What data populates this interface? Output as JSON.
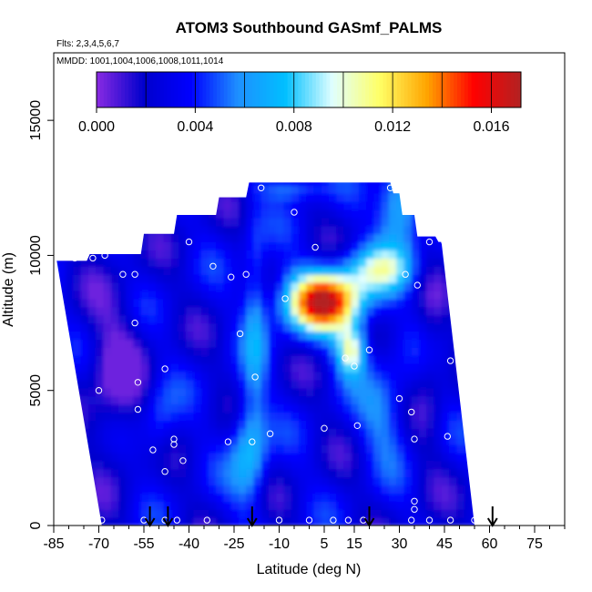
{
  "chart_data": {
    "type": "heatmap",
    "title": "ATOM3 Southbound GASmf_PALMS",
    "subtitle_flights": "Flts: 2,3,4,5,6,7",
    "subtitle_dates": "MMDD: 1001,1004,1006,1008,1011,1014",
    "xlabel": "Latitude (deg N)",
    "ylabel": "Altitude (m)",
    "xlim": [
      -85,
      85
    ],
    "ylim": [
      0,
      17500
    ],
    "x_ticks": [
      -85,
      -70,
      -55,
      -40,
      -25,
      -10,
      5,
      15,
      30,
      45,
      60,
      75
    ],
    "x_tick_labels": [
      "-85",
      "-70",
      "-55",
      "-40",
      "-25",
      "-10",
      "5",
      "15",
      "30",
      "45",
      "60",
      "75"
    ],
    "y_ticks": [
      0,
      5000,
      10000,
      15000
    ],
    "y_tick_labels": [
      "0",
      "5000",
      "10000",
      "15000"
    ],
    "colorbar": {
      "min": 0,
      "max": 0.0172,
      "tick_values": [
        0,
        0.004,
        0.008,
        0.012,
        0.016
      ],
      "tick_labels": [
        "0.000",
        "0.004",
        "0.008",
        "0.012",
        "0.016"
      ],
      "colors": [
        "#8a2be2",
        "#0000cd",
        "#0000ff",
        "#1e90ff",
        "#00bfff",
        "#e0ffff",
        "#ffff66",
        "#ffa500",
        "#ff0000",
        "#b22222"
      ]
    },
    "flight_markers_lat": [
      -53,
      -47,
      -19,
      20,
      61
    ],
    "sample_points": [
      [
        -69,
        200
      ],
      [
        -55,
        200
      ],
      [
        -48,
        200
      ],
      [
        -44,
        200
      ],
      [
        -34,
        200
      ],
      [
        -10,
        200
      ],
      [
        0,
        200
      ],
      [
        8,
        200
      ],
      [
        13,
        200
      ],
      [
        18,
        200
      ],
      [
        34,
        200
      ],
      [
        40,
        200
      ],
      [
        47,
        200
      ],
      [
        55,
        200
      ],
      [
        -52,
        2800
      ],
      [
        -45,
        3000
      ],
      [
        -45,
        3200
      ],
      [
        -48,
        2000
      ],
      [
        -42,
        2400
      ],
      [
        -27,
        3100
      ],
      [
        -19,
        3100
      ],
      [
        -13,
        3400
      ],
      [
        5,
        3600
      ],
      [
        16,
        3700
      ],
      [
        35,
        3200
      ],
      [
        46,
        3300
      ],
      [
        34,
        4200
      ],
      [
        30,
        4700
      ],
      [
        -57,
        4300
      ],
      [
        -70,
        5000
      ],
      [
        -57,
        5300
      ],
      [
        -48,
        5800
      ],
      [
        -18,
        5500
      ],
      [
        15,
        5900
      ],
      [
        12,
        6200
      ],
      [
        20,
        6500
      ],
      [
        -23,
        7100
      ],
      [
        -58,
        7500
      ],
      [
        -8,
        8400
      ],
      [
        -21,
        9300
      ],
      [
        -26,
        9200
      ],
      [
        -58,
        9300
      ],
      [
        -62,
        9300
      ],
      [
        -32,
        9600
      ],
      [
        -72,
        9900
      ],
      [
        -78,
        9900
      ],
      [
        -68,
        10000
      ],
      [
        -40,
        10500
      ],
      [
        -56,
        10900
      ],
      [
        -49,
        11000
      ],
      [
        2,
        10300
      ],
      [
        -5,
        11600
      ],
      [
        -16,
        12500
      ],
      [
        27,
        12500
      ],
      [
        40,
        10500
      ],
      [
        45,
        10500
      ],
      [
        32,
        9300
      ],
      [
        36,
        8900
      ],
      [
        47,
        6100
      ],
      [
        35,
        900
      ],
      [
        35,
        600
      ]
    ]
  }
}
